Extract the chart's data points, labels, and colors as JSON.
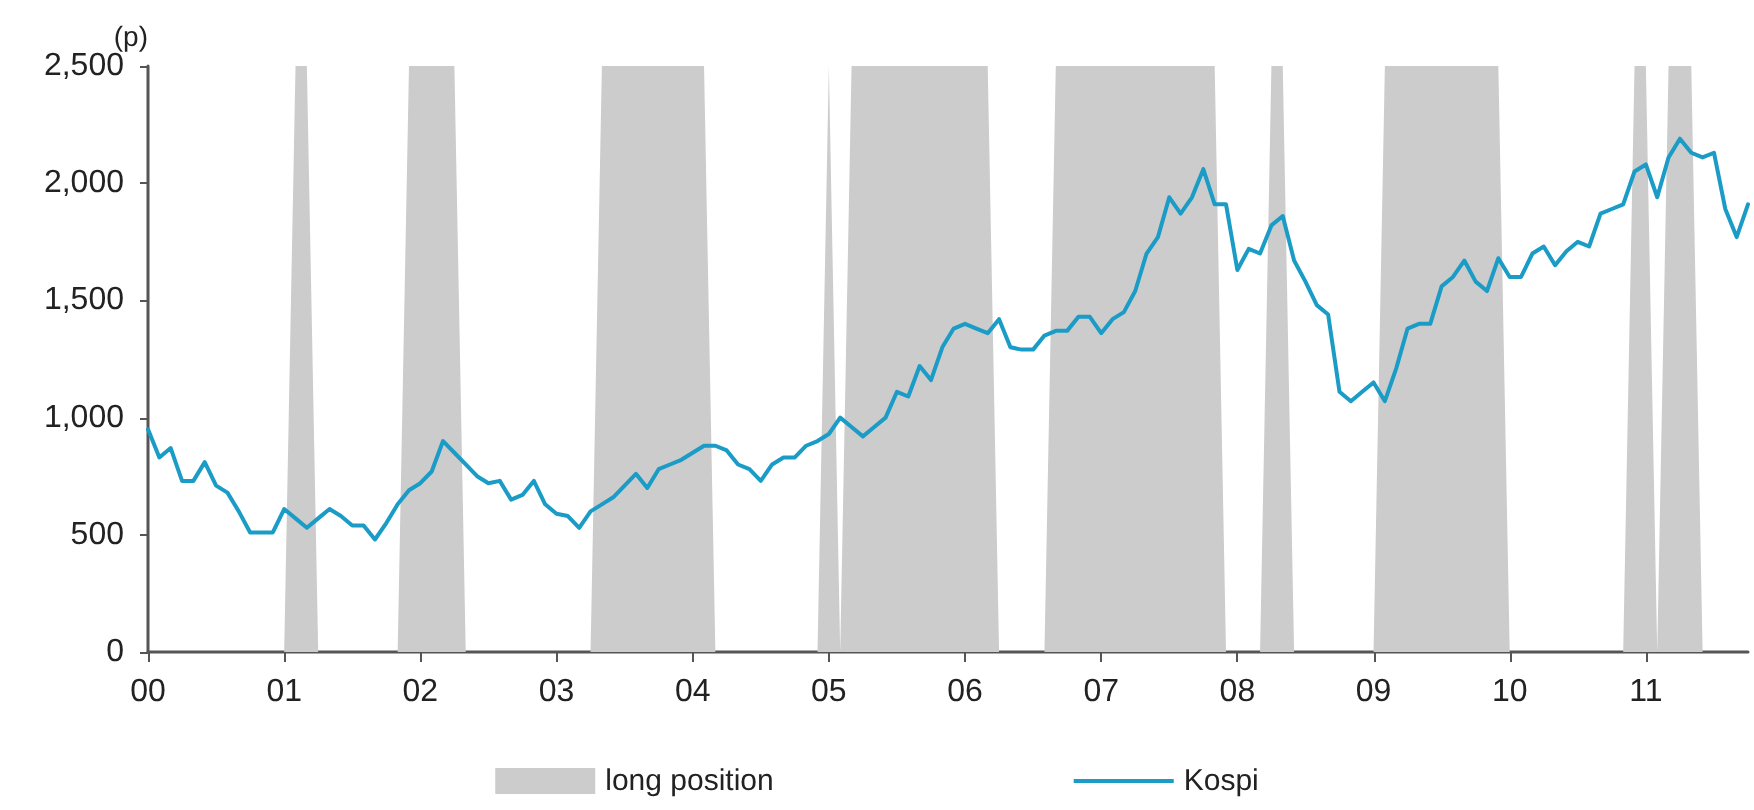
{
  "chart_data": {
    "type": "line",
    "ylabel": "(p)",
    "categories": [
      "00",
      null,
      null,
      null,
      null,
      null,
      null,
      null,
      null,
      null,
      null,
      null,
      "01",
      null,
      null,
      null,
      null,
      null,
      null,
      null,
      null,
      null,
      null,
      null,
      "02",
      null,
      null,
      null,
      null,
      null,
      null,
      null,
      null,
      null,
      null,
      null,
      "03",
      null,
      null,
      null,
      null,
      null,
      null,
      null,
      null,
      null,
      null,
      null,
      "04",
      null,
      null,
      null,
      null,
      null,
      null,
      null,
      null,
      null,
      null,
      null,
      "05",
      null,
      null,
      null,
      null,
      null,
      null,
      null,
      null,
      null,
      null,
      null,
      "06",
      null,
      null,
      null,
      null,
      null,
      null,
      null,
      null,
      null,
      null,
      null,
      "07",
      null,
      null,
      null,
      null,
      null,
      null,
      null,
      null,
      null,
      null,
      null,
      "08",
      null,
      null,
      null,
      null,
      null,
      null,
      null,
      null,
      null,
      null,
      null,
      "09",
      null,
      null,
      null,
      null,
      null,
      null,
      null,
      null,
      null,
      null,
      null,
      "10",
      null,
      null,
      null,
      null,
      null,
      null,
      null,
      null,
      null,
      null,
      null,
      "11",
      null,
      null,
      null,
      null,
      null,
      null,
      null,
      null,
      null
    ],
    "series": [
      {
        "name": "long position",
        "type": "area",
        "color": "#cccccc",
        "values": [
          0,
          0,
          0,
          0,
          0,
          0,
          0,
          0,
          0,
          0,
          0,
          0,
          0,
          2500,
          2500,
          0,
          0,
          0,
          0,
          0,
          0,
          0,
          0,
          2500,
          2500,
          2500,
          2500,
          2500,
          0,
          0,
          0,
          0,
          0,
          0,
          0,
          0,
          0,
          0,
          0,
          0,
          2500,
          2500,
          2500,
          2500,
          2500,
          2500,
          2500,
          2500,
          2500,
          2500,
          0,
          0,
          0,
          0,
          0,
          0,
          0,
          0,
          0,
          0,
          2500,
          0,
          2500,
          2500,
          2500,
          2500,
          2500,
          2500,
          2500,
          2500,
          2500,
          2500,
          2500,
          2500,
          2500,
          0,
          0,
          0,
          0,
          0,
          2500,
          2500,
          2500,
          2500,
          2500,
          2500,
          2500,
          2500,
          2500,
          2500,
          2500,
          2500,
          2500,
          2500,
          2500,
          0,
          0,
          0,
          0,
          2500,
          2500,
          0,
          0,
          0,
          0,
          0,
          0,
          0,
          0,
          2500,
          2500,
          2500,
          2500,
          2500,
          2500,
          2500,
          2500,
          2500,
          2500,
          2500,
          0,
          0,
          0,
          0,
          0,
          0,
          0,
          0,
          0,
          0,
          0,
          2500,
          2500,
          0,
          2500,
          2500,
          2500,
          0,
          0,
          0,
          0,
          0
        ]
      },
      {
        "name": "Kospi",
        "type": "line",
        "color": "#1a9cc6",
        "values": [
          950,
          830,
          870,
          730,
          730,
          810,
          710,
          680,
          600,
          510,
          510,
          510,
          610,
          570,
          530,
          570,
          610,
          580,
          540,
          540,
          480,
          550,
          630,
          690,
          720,
          770,
          900,
          850,
          800,
          750,
          720,
          730,
          650,
          670,
          730,
          630,
          590,
          580,
          530,
          600,
          630,
          660,
          710,
          760,
          700,
          780,
          800,
          820,
          850,
          880,
          880,
          860,
          800,
          780,
          730,
          800,
          830,
          830,
          880,
          900,
          930,
          1000,
          960,
          920,
          960,
          1000,
          1110,
          1090,
          1220,
          1160,
          1300,
          1380,
          1400,
          1380,
          1360,
          1420,
          1300,
          1290,
          1290,
          1350,
          1370,
          1370,
          1430,
          1430,
          1360,
          1420,
          1450,
          1540,
          1700,
          1770,
          1940,
          1870,
          1940,
          2060,
          1910,
          1910,
          1630,
          1720,
          1700,
          1820,
          1860,
          1670,
          1580,
          1480,
          1440,
          1110,
          1070,
          1110,
          1150,
          1070,
          1210,
          1380,
          1400,
          1400,
          1560,
          1600,
          1670,
          1580,
          1540,
          1680,
          1600,
          1600,
          1700,
          1730,
          1650,
          1710,
          1750,
          1730,
          1870,
          1890,
          1910,
          2050,
          2080,
          1940,
          2110,
          2190,
          2130,
          2110,
          2130,
          1890,
          1770,
          1910
        ]
      }
    ],
    "ylim": [
      0,
      2500
    ],
    "yticks": [
      0,
      500,
      {
        "value": 1000,
        "label": "1,000"
      },
      {
        "value": 1500,
        "label": "1,500"
      },
      {
        "value": 2000,
        "label": "2,000"
      },
      {
        "value": 2500,
        "label": "2,500"
      }
    ],
    "grid": false,
    "legend": "bottom",
    "marker": "none",
    "line_style": "solid"
  }
}
